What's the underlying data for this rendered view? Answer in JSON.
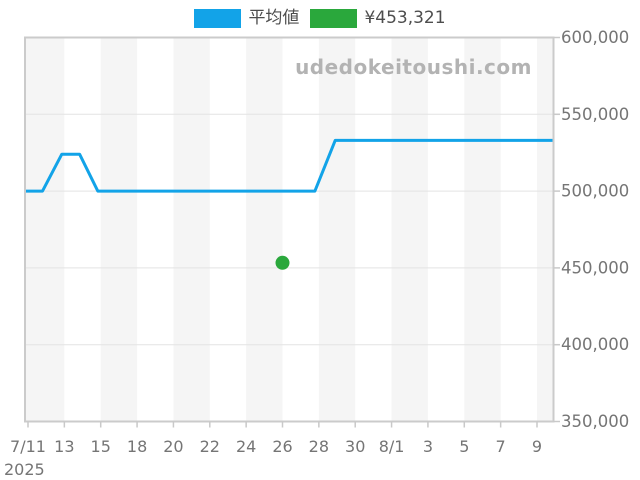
{
  "watermark": "udedokeitoushi.com",
  "legend": {
    "items": [
      {
        "label": "平均値",
        "color": "#12a3e8",
        "series": "average-price-line"
      },
      {
        "label": "¥453,321",
        "color": "#2aa83c",
        "series": "marked-price-point"
      }
    ]
  },
  "chart_data": {
    "type": "line",
    "title": "",
    "xlabel": "",
    "ylabel": "",
    "x_unit": "tick_index (0 = 7/11, each labeled tick ≈ 2 days)",
    "x_tick_labels": [
      "7/11",
      "13",
      "15",
      "18",
      "20",
      "22",
      "24",
      "26",
      "28",
      "30",
      "8/1",
      "3",
      "5",
      "7",
      "9"
    ],
    "x_year_label": "2025",
    "ylim": [
      350000,
      600000
    ],
    "y_ticks": [
      350000,
      400000,
      450000,
      500000,
      550000,
      600000
    ],
    "y_tick_labels": [
      "350,000",
      "400,000",
      "450,000",
      "500,000",
      "550,000",
      "600,000"
    ],
    "legend_position": "top-center",
    "grid": {
      "vertical_bands": true,
      "band_color": "#f5f5f5",
      "gridline_color": "#e3e3e3",
      "border_color": "#cbcbcb",
      "tick_color": "#c9c9c9",
      "axis_text_color": "#757575"
    },
    "series": [
      {
        "name": "平均値",
        "type": "line",
        "color": "#12a3e8",
        "stroke_width": 3,
        "points": [
          {
            "t": -0.08,
            "v": 500000
          },
          {
            "t": 0.4,
            "v": 500000
          },
          {
            "t": 0.93,
            "v": 524000
          },
          {
            "t": 1.42,
            "v": 524000
          },
          {
            "t": 1.92,
            "v": 500000
          },
          {
            "t": 7.89,
            "v": 500000
          },
          {
            "t": 8.45,
            "v": 533000
          },
          {
            "t": 14.46,
            "v": 533000
          }
        ]
      },
      {
        "name": "¥453,321",
        "type": "scatter",
        "color": "#2aa83c",
        "radius": 7,
        "points": [
          {
            "t": 7,
            "v": 453321
          }
        ]
      }
    ]
  }
}
